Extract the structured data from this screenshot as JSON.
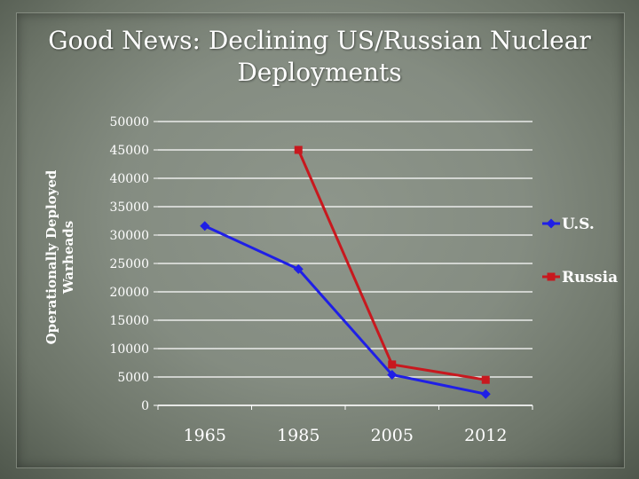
{
  "slide": {
    "title_line1": "Good News:  Declining US/Russian Nuclear",
    "title_line2": "Deployments"
  },
  "colors": {
    "us": "#1f1fe6",
    "russia": "#c8181e",
    "grid": "#ffffff",
    "text": "#ffffff"
  },
  "chart_data": {
    "type": "line",
    "title": "Good News:  Declining US/Russian Nuclear Deployments",
    "xlabel": "",
    "ylabel": "Operationally Deployed Warheads",
    "ylabel_lines": [
      "Operationally Deployed",
      "Warheads"
    ],
    "categories": [
      "1965",
      "1985",
      "2005",
      "2012"
    ],
    "ylim": [
      0,
      50000
    ],
    "yticks": [
      "0",
      "5000",
      "10000",
      "15000",
      "20000",
      "25000",
      "30000",
      "35000",
      "40000",
      "45000",
      "50000"
    ],
    "grid": true,
    "legend_position": "right",
    "series": [
      {
        "name": "U.S.",
        "values": [
          31600,
          24000,
          5400,
          2000
        ],
        "color": "#1f1fe6",
        "marker": "diamond"
      },
      {
        "name": "Russia",
        "values": [
          null,
          45000,
          7200,
          4500
        ],
        "color": "#c8181e",
        "marker": "square"
      }
    ]
  }
}
